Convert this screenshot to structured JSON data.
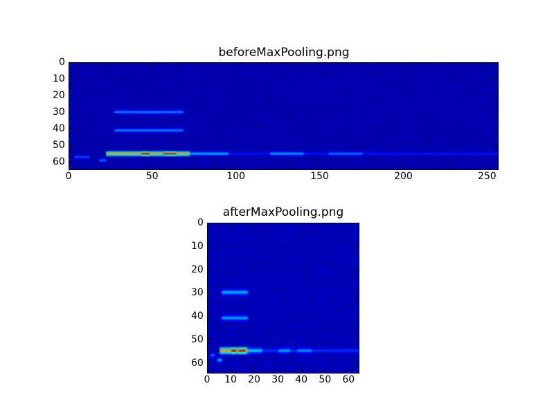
{
  "chart_data": [
    {
      "type": "heatmap",
      "title": "beforeMaxPooling.png",
      "colormap": "jet",
      "shape": [
        64,
        256
      ],
      "xlim": [
        0,
        256
      ],
      "ylim": [
        64,
        0
      ],
      "xticks": [
        0,
        50,
        100,
        150,
        200,
        250
      ],
      "yticks": [
        0,
        10,
        20,
        30,
        40,
        50,
        60
      ],
      "background_value": 0.03,
      "features": [
        {
          "row": 54,
          "col_start": 22,
          "col_end": 72,
          "value": 0.72
        },
        {
          "row": 54,
          "col_start": 43,
          "col_end": 48,
          "value": 0.95
        },
        {
          "row": 54,
          "col_start": 56,
          "col_end": 64,
          "value": 0.92
        },
        {
          "row": 54,
          "col_start": 72,
          "col_end": 95,
          "value": 0.32
        },
        {
          "row": 54,
          "col_start": 95,
          "col_end": 256,
          "value": 0.14
        },
        {
          "row": 54,
          "col_start": 120,
          "col_end": 140,
          "value": 0.3
        },
        {
          "row": 54,
          "col_start": 155,
          "col_end": 175,
          "value": 0.26
        },
        {
          "row": 29,
          "col_start": 27,
          "col_end": 68,
          "value": 0.28
        },
        {
          "row": 40,
          "col_start": 27,
          "col_end": 68,
          "value": 0.26
        },
        {
          "row": 56,
          "col_start": 3,
          "col_end": 12,
          "value": 0.2
        },
        {
          "row": 58,
          "col_start": 18,
          "col_end": 22,
          "value": 0.25
        }
      ]
    },
    {
      "type": "heatmap",
      "title": "afterMaxPooling.png",
      "colormap": "jet",
      "shape": [
        64,
        64
      ],
      "xlim": [
        0,
        64
      ],
      "ylim": [
        64,
        0
      ],
      "xticks": [
        0,
        10,
        20,
        30,
        40,
        50,
        60
      ],
      "yticks": [
        0,
        10,
        20,
        30,
        40,
        50,
        60
      ],
      "background_value": 0.04,
      "features": [
        {
          "row": 54,
          "col_start": 5,
          "col_end": 17,
          "value": 0.72
        },
        {
          "row": 54,
          "col_start": 10,
          "col_end": 12,
          "value": 0.97
        },
        {
          "row": 54,
          "col_start": 13,
          "col_end": 16,
          "value": 0.92
        },
        {
          "row": 54,
          "col_start": 17,
          "col_end": 23,
          "value": 0.35
        },
        {
          "row": 54,
          "col_start": 23,
          "col_end": 64,
          "value": 0.17
        },
        {
          "row": 54,
          "col_start": 30,
          "col_end": 35,
          "value": 0.3
        },
        {
          "row": 54,
          "col_start": 38,
          "col_end": 44,
          "value": 0.28
        },
        {
          "row": 29,
          "col_start": 6,
          "col_end": 17,
          "value": 0.32
        },
        {
          "row": 40,
          "col_start": 6,
          "col_end": 17,
          "value": 0.3
        },
        {
          "row": 56,
          "col_start": 1,
          "col_end": 3,
          "value": 0.22
        },
        {
          "row": 58,
          "col_start": 4,
          "col_end": 6,
          "value": 0.3
        }
      ]
    }
  ]
}
